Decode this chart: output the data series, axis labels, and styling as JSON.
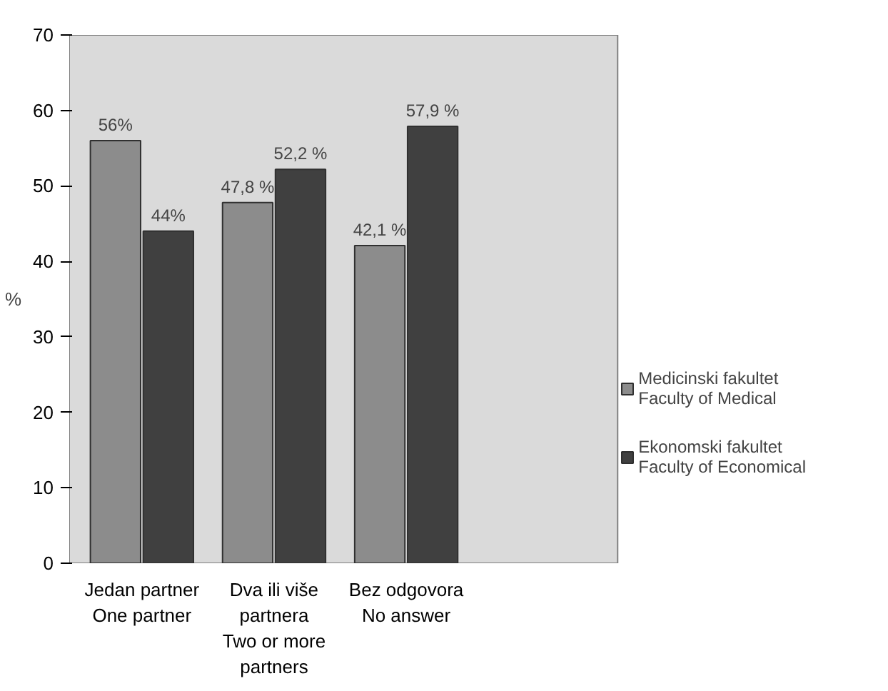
{
  "chart_data": {
    "type": "bar",
    "ylabel": "%",
    "categories": [
      "Jedan partner\nOne partner",
      "Dva ili više\npartnera\nTwo or more\npartners",
      "Bez odgovora\nNo answer"
    ],
    "series": [
      {
        "name": "Medicinski fakultet\nFaculty of Medical",
        "color": "#8c8c8c",
        "values": [
          56,
          47.8,
          42.1
        ],
        "value_labels": [
          "56%",
          "47,8 %",
          "42,1 %"
        ]
      },
      {
        "name": "Ekonomski fakultet\nFaculty of Economical",
        "color": "#404040",
        "values": [
          44,
          52.2,
          57.9
        ],
        "value_labels": [
          "44%",
          "52,2 %",
          "57,9 %"
        ]
      }
    ],
    "ylim": [
      0,
      70
    ],
    "yticks": [
      0,
      10,
      20,
      30,
      40,
      50,
      60,
      70
    ],
    "legend": "right"
  }
}
